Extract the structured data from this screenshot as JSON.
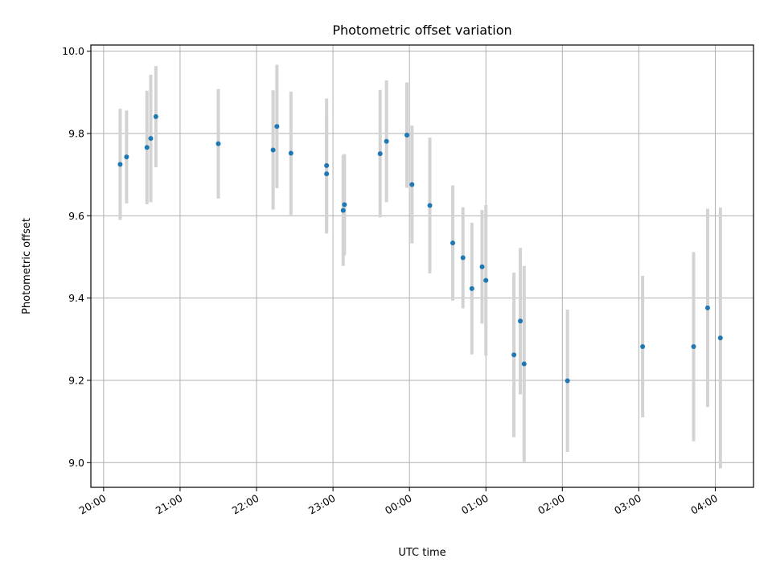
{
  "chart_data": {
    "type": "scatter",
    "title": "Photometric offset variation",
    "xlabel": "UTC time",
    "ylabel": "Photometric offset",
    "x_start": "20:00",
    "x_unit": "hours",
    "xlim": [
      "19:50",
      "04:30"
    ],
    "ylim": [
      8.94,
      10.015
    ],
    "x_ticks": [
      {
        "x": "20:00",
        "label": "20:00"
      },
      {
        "x": "21:00",
        "label": "21:00"
      },
      {
        "x": "22:00",
        "label": "22:00"
      },
      {
        "x": "23:00",
        "label": "23:00"
      },
      {
        "x": "00:00",
        "label": "00:00"
      },
      {
        "x": "01:00",
        "label": "01:00"
      },
      {
        "x": "02:00",
        "label": "02:00"
      },
      {
        "x": "03:00",
        "label": "03:00"
      },
      {
        "x": "04:00",
        "label": "04:00"
      }
    ],
    "y_ticks": [
      {
        "y": 9.0,
        "label": "9.0"
      },
      {
        "y": 9.2,
        "label": "9.2"
      },
      {
        "y": 9.4,
        "label": "9.4"
      },
      {
        "y": 9.6,
        "label": "9.6"
      },
      {
        "y": 9.8,
        "label": "9.8"
      },
      {
        "y": 10.0,
        "label": "10.0"
      }
    ],
    "grid": true,
    "marker_color": "#1f77b4",
    "errorbar_color": "#d3d3d3",
    "series": [
      {
        "points": [
          {
            "x": "20:13",
            "y": 9.725,
            "err": 0.135
          },
          {
            "x": "20:18",
            "y": 9.743,
            "err": 0.113
          },
          {
            "x": "20:34",
            "y": 9.766,
            "err": 0.138
          },
          {
            "x": "20:37",
            "y": 9.788,
            "err": 0.155
          },
          {
            "x": "20:41",
            "y": 9.841,
            "err": 0.123
          },
          {
            "x": "21:30",
            "y": 9.775,
            "err": 0.133
          },
          {
            "x": "22:13",
            "y": 9.76,
            "err": 0.145
          },
          {
            "x": "22:16",
            "y": 9.817,
            "err": 0.15
          },
          {
            "x": "22:27",
            "y": 9.752,
            "err": 0.15
          },
          {
            "x": "22:55",
            "y": 9.722,
            "err": 0.163
          },
          {
            "x": "22:55",
            "y": 9.702,
            "err": 0.145
          },
          {
            "x": "23:08",
            "y": 9.613,
            "err": 0.135
          },
          {
            "x": "23:09",
            "y": 9.627,
            "err": 0.123
          },
          {
            "x": "23:37",
            "y": 9.751,
            "err": 0.155
          },
          {
            "x": "23:42",
            "y": 9.781,
            "err": 0.148
          },
          {
            "x": "23:58",
            "y": 9.796,
            "err": 0.128
          },
          {
            "x": "00:02",
            "y": 9.676,
            "err": 0.143
          },
          {
            "x": "00:16",
            "y": 9.625,
            "err": 0.165
          },
          {
            "x": "00:34",
            "y": 9.534,
            "err": 0.14
          },
          {
            "x": "00:42",
            "y": 9.498,
            "err": 0.123
          },
          {
            "x": "00:49",
            "y": 9.423,
            "err": 0.16
          },
          {
            "x": "00:57",
            "y": 9.476,
            "err": 0.138
          },
          {
            "x": "01:00",
            "y": 9.443,
            "err": 0.183
          },
          {
            "x": "01:22",
            "y": 9.262,
            "err": 0.2
          },
          {
            "x": "01:27",
            "y": 9.344,
            "err": 0.178
          },
          {
            "x": "01:30",
            "y": 9.24,
            "err": 0.238
          },
          {
            "x": "02:04",
            "y": 9.199,
            "err": 0.173
          },
          {
            "x": "03:03",
            "y": 9.282,
            "err": 0.172
          },
          {
            "x": "03:43",
            "y": 9.282,
            "err": 0.23
          },
          {
            "x": "03:54",
            "y": 9.376,
            "err": 0.241
          },
          {
            "x": "04:04",
            "y": 9.303,
            "err": 0.317
          }
        ]
      }
    ]
  }
}
